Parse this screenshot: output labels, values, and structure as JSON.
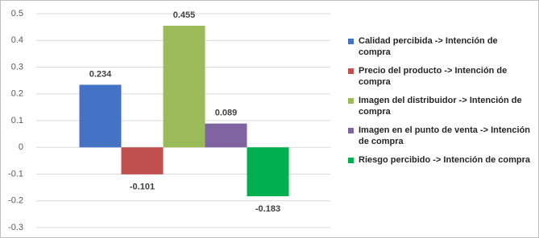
{
  "chart_data": {
    "type": "bar",
    "categories": [
      null
    ],
    "series": [
      {
        "name": "Calidad percibida -> Intención de compra",
        "color": "#4472c4",
        "values": [
          0.234
        ]
      },
      {
        "name": "Precio del producto -> Intención de compra",
        "color": "#c0504d",
        "values": [
          -0.101
        ]
      },
      {
        "name": "Imagen del distribuidor -> Intención de compra",
        "color": "#9bbb59",
        "values": [
          0.455
        ]
      },
      {
        "name": "Imagen en el punto de venta -> Intención de compra",
        "color": "#8064a2",
        "values": [
          0.089
        ]
      },
      {
        "name": "Riesgo percibido -> Intención de compra",
        "color": "#00b050",
        "values": [
          -0.183
        ]
      }
    ],
    "ylim": [
      -0.3,
      0.5
    ],
    "yticks": [
      -0.3,
      -0.2,
      -0.1,
      0,
      0.1,
      0.2,
      0.3,
      0.4,
      0.5
    ],
    "grid": true,
    "legend": "right"
  }
}
